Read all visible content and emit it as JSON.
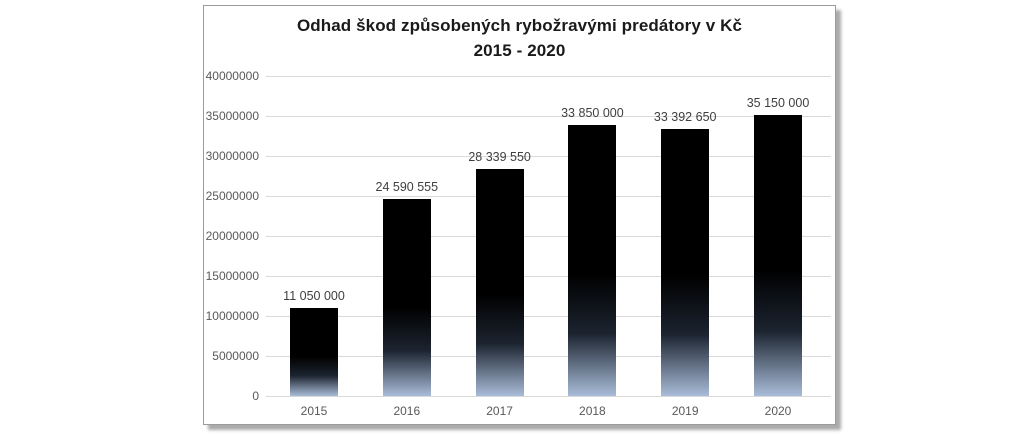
{
  "chart_data": {
    "type": "bar",
    "title_line1": "Odhad škod způsobených rybožravými predátory v Kč",
    "title_line2": "2015 - 2020",
    "categories": [
      "2015",
      "2016",
      "2017",
      "2018",
      "2019",
      "2020"
    ],
    "values": [
      11050000,
      24590555,
      28339550,
      33850000,
      33392650,
      35150000
    ],
    "value_labels": [
      "11 050 000",
      "24 590 555",
      "28 339 550",
      "33 850 000",
      "33 392 650",
      "35 150 000"
    ],
    "ylim": [
      0,
      40000000
    ],
    "ytick_step": 5000000,
    "ytick_labels": [
      "0",
      "5000000",
      "10000000",
      "15000000",
      "20000000",
      "25000000",
      "30000000",
      "35000000",
      "40000000"
    ],
    "grid": "horizontal",
    "legend": "none",
    "style": {
      "bar_top_color": "#000000",
      "bar_bottom_color": "#a9bcd8",
      "gridline_color": "#d9d9d9",
      "axis_text_color": "#595959",
      "data_label_color": "#3f3f3f",
      "title_color": "#1a1a1a",
      "frame_border_color": "#9b9b9b",
      "frame_shadow_color": "#ababab",
      "background": "#ffffff"
    }
  }
}
